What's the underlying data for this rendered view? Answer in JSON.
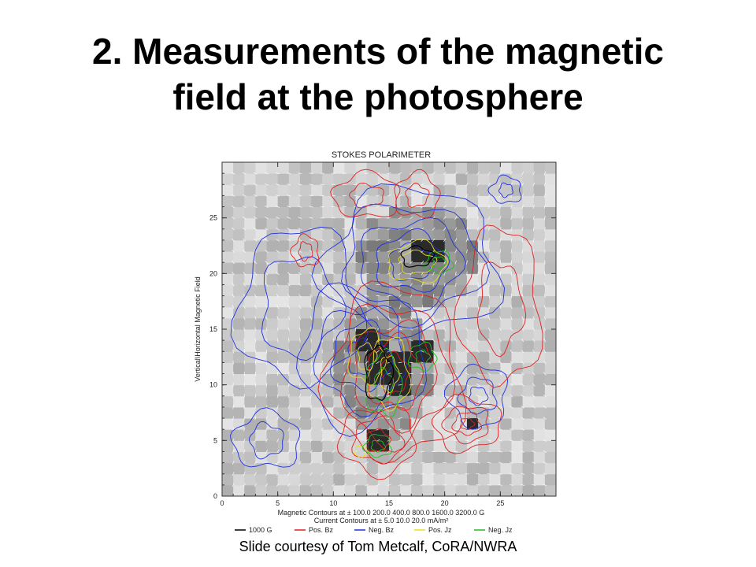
{
  "slide": {
    "title_line1": "2.  Measurements of the magnetic",
    "title_line2": "field at the photosphere",
    "credit": "Slide courtesy of Tom Metcalf, CoRA/NWRA"
  },
  "chart_data": {
    "type": "heatmap",
    "title": "STOKES POLARIMETER",
    "xlabel": "",
    "ylabel": "Vertical\\Horizontal Magnetic Field",
    "xlim": [
      0,
      30
    ],
    "ylim": [
      0,
      30
    ],
    "xticks": [
      0,
      5,
      10,
      15,
      20,
      25
    ],
    "yticks": [
      0,
      5,
      10,
      15,
      20,
      25
    ],
    "caption_line1": "Magnetic Contours at ±  100.0 200.0 400.0 800.0 1600.0 3200.0 G",
    "caption_line2": "Current Contours at ± 5.0 10.0 20.0 mA/m²",
    "legend": [
      {
        "label": "1000 G",
        "color": "#000000"
      },
      {
        "label": "Pos. Bz",
        "color": "#e02020"
      },
      {
        "label": "Neg. Bz",
        "color": "#2030e0"
      },
      {
        "label": "Pos. Jz",
        "color": "#e8e020"
      },
      {
        "label": "Neg. Jz",
        "color": "#20c020"
      }
    ],
    "dark_regions": [
      {
        "x": 17,
        "y": 21,
        "w": 3,
        "h": 2
      },
      {
        "x": 12,
        "y": 13,
        "w": 2,
        "h": 2
      },
      {
        "x": 13,
        "y": 10,
        "w": 2,
        "h": 4
      },
      {
        "x": 15,
        "y": 9,
        "w": 2,
        "h": 4
      },
      {
        "x": 17,
        "y": 12,
        "w": 2,
        "h": 2
      },
      {
        "x": 13,
        "y": 4,
        "w": 2,
        "h": 2
      },
      {
        "x": 22,
        "y": 6,
        "w": 1,
        "h": 1
      }
    ],
    "contours": {
      "neg_bz": [
        {
          "cx": 17,
          "cy": 21,
          "rx": [
            2,
            3.2,
            4.6,
            6.2,
            7.8
          ],
          "ry": [
            1.6,
            2.6,
            3.8,
            5.2,
            6.6
          ]
        },
        {
          "cx": 12.5,
          "cy": 12.5,
          "rx": [
            1.2,
            2.6,
            4.0,
            5.6
          ],
          "ry": [
            1.6,
            3.0,
            4.6,
            6.2
          ]
        },
        {
          "cx": 7,
          "cy": 17,
          "rx": [
            3.5,
            5.5
          ],
          "ry": [
            4.5,
            7.0
          ]
        },
        {
          "cx": 23,
          "cy": 9,
          "rx": [
            0.8,
            1.6,
            2.6
          ],
          "ry": [
            0.8,
            1.6,
            2.8
          ]
        },
        {
          "cx": 25.5,
          "cy": 27.5,
          "rx": [
            0.6,
            1.4
          ],
          "ry": [
            0.6,
            1.2
          ]
        },
        {
          "cx": 4,
          "cy": 5,
          "rx": [
            1.5,
            3.0
          ],
          "ry": [
            1.5,
            2.5
          ]
        }
      ],
      "pos_bz": [
        {
          "cx": 15.5,
          "cy": 11,
          "rx": [
            1.2,
            2.4,
            3.6,
            4.8,
            6.0
          ],
          "ry": [
            1.8,
            3.2,
            4.6,
            6.2,
            7.8
          ]
        },
        {
          "cx": 14,
          "cy": 5,
          "rx": [
            1.0,
            2.2,
            3.4
          ],
          "ry": [
            1.0,
            2.0,
            3.0
          ]
        },
        {
          "cx": 22,
          "cy": 6.5,
          "rx": [
            0.6,
            1.2,
            2.0,
            3.0
          ],
          "ry": [
            0.5,
            1.0,
            1.6,
            2.4
          ]
        },
        {
          "cx": 25,
          "cy": 17,
          "rx": [
            2.0,
            3.6
          ],
          "ry": [
            4.0,
            7.0
          ]
        },
        {
          "cx": 7.5,
          "cy": 22,
          "rx": [
            0.6,
            1.2
          ],
          "ry": [
            0.8,
            1.4
          ]
        },
        {
          "cx": 13,
          "cy": 27,
          "rx": [
            1.5,
            3.0
          ],
          "ry": [
            1.0,
            2.0
          ]
        },
        {
          "cx": 17.5,
          "cy": 27,
          "rx": [
            1.0,
            2.0
          ],
          "ry": [
            1.0,
            2.0
          ]
        }
      ],
      "pos_jz": [
        {
          "cx": 17.5,
          "cy": 21,
          "rx": [
            1.6,
            2.6
          ],
          "ry": [
            1.0,
            1.8
          ]
        },
        {
          "cx": 13,
          "cy": 12.5,
          "rx": [
            0.8,
            1.6
          ],
          "ry": [
            1.2,
            2.4
          ]
        },
        {
          "cx": 15,
          "cy": 11,
          "rx": [
            0.8,
            1.8
          ],
          "ry": [
            1.6,
            3.2
          ]
        },
        {
          "cx": 12.5,
          "cy": 4,
          "rx": [
            0.6
          ],
          "ry": [
            0.5
          ]
        }
      ],
      "neg_jz": [
        {
          "cx": 14.5,
          "cy": 10,
          "rx": [
            0.8,
            1.6
          ],
          "ry": [
            1.4,
            2.8
          ]
        },
        {
          "cx": 18,
          "cy": 12.5,
          "rx": [
            0.6,
            1.2
          ],
          "ry": [
            0.6,
            1.2
          ]
        },
        {
          "cx": 19.5,
          "cy": 21,
          "rx": [
            0.6,
            1.2
          ],
          "ry": [
            0.5,
            1.0
          ]
        },
        {
          "cx": 14,
          "cy": 4.5,
          "rx": [
            0.6,
            1.2
          ],
          "ry": [
            0.5,
            1.0
          ]
        }
      ],
      "thousand_g": [
        {
          "cx": 17.5,
          "cy": 21.5,
          "rx": [
            1.4
          ],
          "ry": [
            0.9
          ]
        },
        {
          "cx": 14,
          "cy": 11,
          "rx": [
            1.2
          ],
          "ry": [
            2.4
          ]
        }
      ]
    }
  }
}
